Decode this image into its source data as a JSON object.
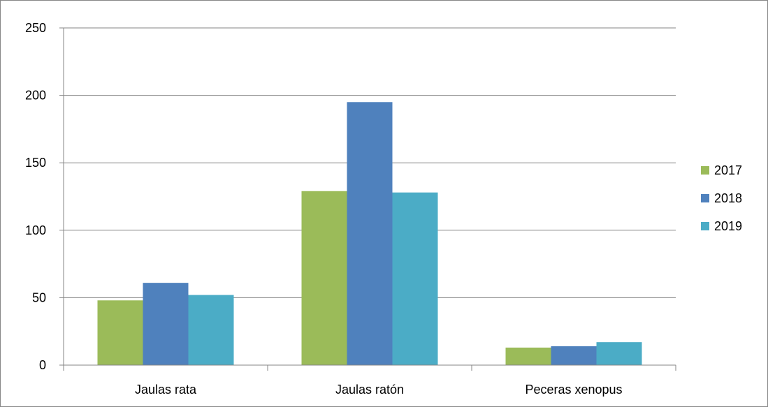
{
  "chart_data": {
    "type": "bar",
    "title": "",
    "xlabel": "",
    "ylabel": "",
    "categories": [
      "Jaulas rata",
      "Jaulas ratón",
      "Peceras xenopus"
    ],
    "series": [
      {
        "name": "2017",
        "color": "#9BBB59",
        "values": [
          48,
          129,
          13
        ]
      },
      {
        "name": "2018",
        "color": "#4F81BD",
        "values": [
          61,
          195,
          14
        ]
      },
      {
        "name": "2019",
        "color": "#4BACC6",
        "values": [
          52,
          128,
          17
        ]
      }
    ],
    "ylim": [
      0,
      250
    ],
    "yticks": [
      0,
      50,
      100,
      150,
      200,
      250
    ],
    "grid": true,
    "legend_position": "right",
    "axis_color": "#868686",
    "grid_color": "#868686"
  }
}
